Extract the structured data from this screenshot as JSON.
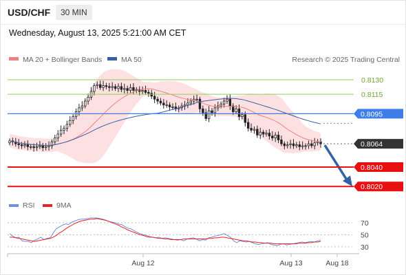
{
  "header": {
    "symbol": "USD/CHF",
    "timeframe": "30 MIN",
    "datetime": "Wednesday, August 13, 2025 5:21:00 AM CET"
  },
  "legend": {
    "ma20_label": "MA 20 + Bollinger Bands",
    "ma50_label": "MA 50",
    "credit": "Research © 2025 Trading Central",
    "rsi_label": "RSI",
    "rsi_ma_label": "9MA"
  },
  "colors": {
    "ma20": "#f08080",
    "bollinger_fill": "#fde0e2",
    "ma50": "#3a5fa0",
    "resistance": "#8fce5a",
    "pivot": "#3d7ee8",
    "support": "#e81010",
    "current": "#333333",
    "arrow": "#2e63a6",
    "rsi": "#6f8fe0",
    "rsi_ma": "#e82020"
  },
  "chart_data": [
    {
      "type": "candlestick",
      "series": [
        {
          "name": "MA 20 + Bollinger Bands"
        },
        {
          "name": "MA 50"
        }
      ],
      "closes": [
        0.8067,
        0.8066,
        0.8064,
        0.8063,
        0.8062,
        0.8063,
        0.8061,
        0.8061,
        0.806,
        0.8061,
        0.8062,
        0.806,
        0.8061,
        0.8062,
        0.8066,
        0.807,
        0.8074,
        0.8078,
        0.808,
        0.8084,
        0.8088,
        0.8092,
        0.8097,
        0.8101,
        0.8103,
        0.8108,
        0.8112,
        0.8118,
        0.8124,
        0.8125,
        0.8122,
        0.8124,
        0.8123,
        0.8122,
        0.8123,
        0.8121,
        0.8123,
        0.812,
        0.8121,
        0.8119,
        0.8122,
        0.8119,
        0.812,
        0.8118,
        0.8119,
        0.8117,
        0.8116,
        0.8113,
        0.811,
        0.8108,
        0.8106,
        0.8104,
        0.8104,
        0.8102,
        0.8102,
        0.81,
        0.8101,
        0.8103,
        0.8104,
        0.8106,
        0.8108,
        0.811,
        0.811,
        0.81,
        0.8096,
        0.809,
        0.8098,
        0.8096,
        0.8101,
        0.8103,
        0.8105,
        0.8108,
        0.811,
        0.8103,
        0.8097,
        0.81,
        0.8092,
        0.8094,
        0.8086,
        0.808,
        0.8078,
        0.8079,
        0.8073,
        0.8076,
        0.8074,
        0.8075,
        0.8072,
        0.807,
        0.8073,
        0.8068,
        0.8064,
        0.8062,
        0.8063,
        0.8064,
        0.8062,
        0.8063,
        0.8061,
        0.8062,
        0.8062,
        0.8064,
        0.8062,
        0.8065,
        0.8066,
        0.8064
      ],
      "levels": [
        {
          "value": "0.8130",
          "type": "resistance"
        },
        {
          "value": "0.8115",
          "type": "resistance"
        },
        {
          "value": "0.8095",
          "type": "pivot"
        },
        {
          "value": "0.8064",
          "type": "current"
        },
        {
          "value": "0.8040",
          "type": "support"
        },
        {
          "value": "0.8020",
          "type": "support"
        }
      ],
      "x_labels": [
        "Aug 12",
        "Aug 13",
        "Aug 18"
      ],
      "forecast": "down to 0.8020"
    },
    {
      "type": "line",
      "series": [
        {
          "name": "RSI"
        },
        {
          "name": "9MA"
        }
      ],
      "ylim": [
        30,
        70
      ],
      "ticks": [
        "70",
        "50",
        "30"
      ],
      "rsi": [
        52,
        48,
        45,
        46,
        40,
        39,
        39,
        37,
        41,
        43,
        46,
        42,
        44,
        45,
        53,
        60,
        63,
        66,
        68,
        67,
        71,
        73,
        75,
        76,
        76,
        77,
        78,
        78,
        78,
        77,
        76,
        74,
        72,
        71,
        70,
        68,
        67,
        64,
        61,
        60,
        57,
        54,
        52,
        50,
        49,
        47,
        46,
        45,
        46,
        44,
        45,
        44,
        43,
        42,
        41,
        42,
        40,
        43,
        44,
        45,
        43,
        40,
        42,
        41,
        45,
        46,
        48,
        49,
        50,
        52,
        49,
        46,
        40,
        37,
        40,
        39,
        38,
        39,
        37,
        35,
        34,
        35,
        36,
        37,
        34,
        33,
        32,
        34,
        35,
        33,
        34,
        35,
        36,
        37,
        38,
        37,
        38,
        39,
        38,
        40,
        41
      ],
      "ma": [
        46,
        46,
        45,
        44,
        43,
        42,
        41,
        40,
        39,
        40,
        41,
        42,
        43,
        44,
        46,
        49,
        53,
        56,
        60,
        63,
        66,
        69,
        71,
        73,
        74,
        75,
        76,
        76,
        77,
        76,
        75,
        74,
        72,
        70,
        68,
        66,
        63,
        61,
        58,
        56,
        54,
        52,
        50,
        49,
        47,
        46,
        46,
        45,
        44,
        44,
        43,
        43,
        42,
        42,
        42,
        42,
        43,
        43,
        43,
        43,
        43,
        43,
        43,
        43,
        44,
        44,
        45,
        45,
        46,
        46,
        45,
        44,
        43,
        42,
        41,
        40,
        40,
        39,
        38,
        38,
        37,
        37,
        36,
        36,
        36,
        35,
        35,
        35,
        35,
        35,
        35,
        35,
        35,
        36,
        36,
        36,
        37,
        37,
        38,
        38,
        39
      ]
    }
  ]
}
